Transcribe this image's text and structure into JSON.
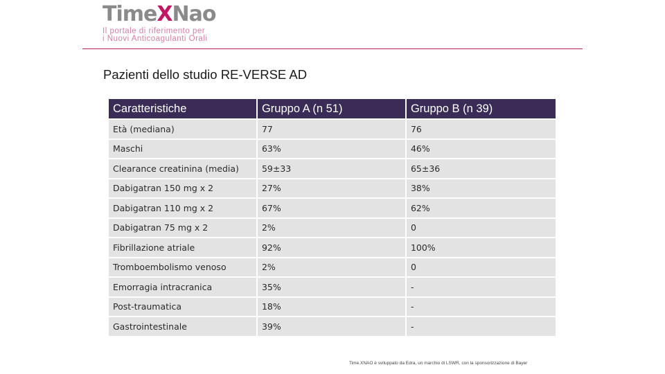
{
  "logo": {
    "time": "Time",
    "x": "X",
    "nao": "Nao",
    "tagline_line1": "Il portale di riferimento per",
    "tagline_line2": "i Nuovi Anticoagulanti Orali"
  },
  "slide": {
    "title": "Pazienti dello studio RE-VERSE AD"
  },
  "table": {
    "headers": [
      "Caratteristiche",
      "Gruppo A (n 51)",
      "Gruppo B (n 39)"
    ],
    "rows": [
      [
        "Età (mediana)",
        "77",
        "76"
      ],
      [
        "Maschi",
        "63%",
        "46%"
      ],
      [
        "Clearance creatinina (media)",
        "59±33",
        "65±36"
      ],
      [
        "Dabigatran 150 mg x 2",
        "27%",
        "38%"
      ],
      [
        "Dabigatran 110 mg x 2",
        "67%",
        "62%"
      ],
      [
        "Dabigatran 75 mg x 2",
        "2%",
        "0"
      ],
      [
        "Fibrillazione atriale",
        "92%",
        "100%"
      ],
      [
        "Tromboembolismo venoso",
        "2%",
        "0"
      ],
      [
        "Emorragia intracranica",
        "35%",
        "-"
      ],
      [
        "Post-traumatica",
        "18%",
        "-"
      ],
      [
        "Gastrointestinale",
        "39%",
        "-"
      ]
    ]
  },
  "footer": {
    "note": "Time.XNAO è sviluppato da Edra, un marchio di LSWR, con la sponsorizzazione di Bayer"
  },
  "colors": {
    "brand_magenta": "#c01862",
    "logo_gray": "#8a8a8a",
    "header_fill": "#3a2c56",
    "row_fill": "#e3e3e3"
  }
}
